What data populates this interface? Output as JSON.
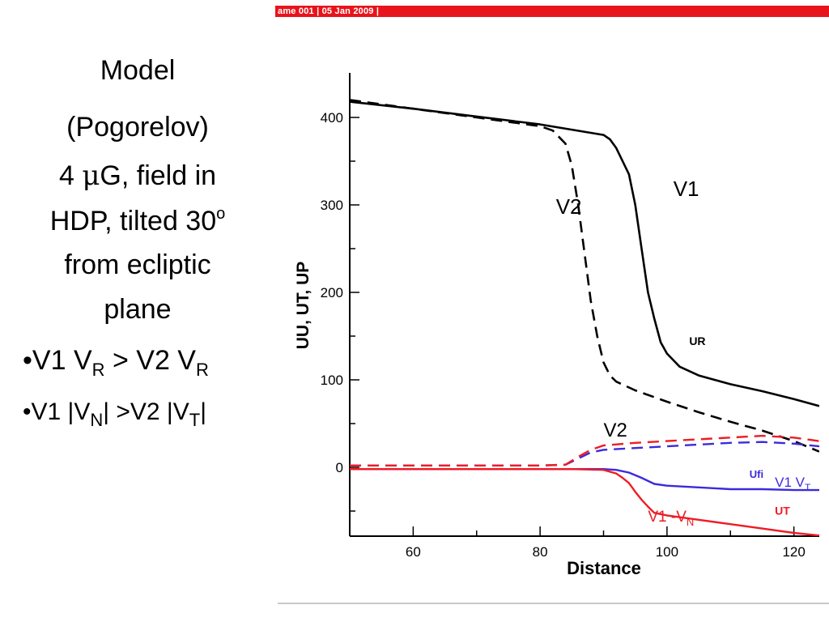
{
  "header": {
    "text": "ame 001  |  05 Jan 2009  |",
    "bar_color": "#e8141b"
  },
  "slide": {
    "title_line1": "Model",
    "title_line2": "(Pogorelov)",
    "field_line1_prefix": "4 ",
    "field_line1_mu": "μ",
    "field_line1_suffix": "G, field in",
    "field_line2": "HDP, tilted 30",
    "field_line2_sup": "o",
    "field_line3": "from ecliptic",
    "field_line4": "plane",
    "bullet1": {
      "bullet": "•",
      "a": "V1 V",
      "a_sub": "R",
      "b": " > V2 V",
      "b_sub": "R"
    },
    "bullet2": {
      "bullet": "•",
      "a": "V1 |V",
      "a_sub": "N",
      "b": "| >V2 |V",
      "b_sub": "T",
      "c": "|"
    }
  },
  "chart_data": {
    "type": "line",
    "xlabel": "Distance",
    "ylabel": "UU, UT, UP",
    "xlim": [
      50,
      124
    ],
    "ylim": [
      -80,
      450
    ],
    "x_ticks": [
      60,
      80,
      100,
      120
    ],
    "y_ticks": [
      0,
      100,
      200,
      300,
      400
    ],
    "colors": {
      "black": "#000000",
      "red": "#ee1c25",
      "blue": "#3b2bdc"
    },
    "series": [
      {
        "id": "v1-ur",
        "color": "black",
        "dash": false,
        "points": [
          [
            50,
            418
          ],
          [
            60,
            410
          ],
          [
            70,
            401
          ],
          [
            80,
            392
          ],
          [
            90,
            380
          ],
          [
            91,
            375
          ],
          [
            92,
            365
          ],
          [
            94,
            335
          ],
          [
            95,
            300
          ],
          [
            96,
            250
          ],
          [
            97,
            200
          ],
          [
            98,
            170
          ],
          [
            99,
            143
          ],
          [
            100,
            130
          ],
          [
            102,
            115
          ],
          [
            105,
            105
          ],
          [
            110,
            95
          ],
          [
            115,
            87
          ],
          [
            120,
            78
          ],
          [
            124,
            70
          ]
        ]
      },
      {
        "id": "v2-ur",
        "color": "black",
        "dash": true,
        "points": [
          [
            50,
            420
          ],
          [
            60,
            410
          ],
          [
            70,
            400
          ],
          [
            80,
            390
          ],
          [
            82,
            385
          ],
          [
            84,
            370
          ],
          [
            85,
            345
          ],
          [
            86,
            300
          ],
          [
            87,
            245
          ],
          [
            88,
            190
          ],
          [
            89,
            150
          ],
          [
            90,
            120
          ],
          [
            91,
            105
          ],
          [
            92,
            98
          ],
          [
            95,
            88
          ],
          [
            100,
            75
          ],
          [
            105,
            63
          ],
          [
            110,
            52
          ],
          [
            115,
            42
          ],
          [
            120,
            30
          ],
          [
            124,
            18
          ]
        ]
      },
      {
        "id": "v1-ufi",
        "color": "blue",
        "dash": false,
        "points": [
          [
            50,
            -2
          ],
          [
            60,
            -2
          ],
          [
            70,
            -2
          ],
          [
            80,
            -2
          ],
          [
            85,
            -2
          ],
          [
            90,
            -2
          ],
          [
            92,
            -3
          ],
          [
            94,
            -6
          ],
          [
            96,
            -12
          ],
          [
            98,
            -19
          ],
          [
            100,
            -21
          ],
          [
            105,
            -23
          ],
          [
            110,
            -25
          ],
          [
            115,
            -25
          ],
          [
            120,
            -26
          ],
          [
            124,
            -26
          ]
        ]
      },
      {
        "id": "v1-ut",
        "color": "red",
        "dash": false,
        "points": [
          [
            50,
            -2
          ],
          [
            60,
            -2
          ],
          [
            70,
            -2
          ],
          [
            80,
            -2
          ],
          [
            85,
            -2
          ],
          [
            90,
            -3
          ],
          [
            92,
            -7
          ],
          [
            93,
            -12
          ],
          [
            94,
            -18
          ],
          [
            95,
            -28
          ],
          [
            96,
            -37
          ],
          [
            97,
            -45
          ],
          [
            98,
            -52
          ],
          [
            100,
            -55
          ],
          [
            105,
            -60
          ],
          [
            110,
            -65
          ],
          [
            115,
            -70
          ],
          [
            120,
            -75
          ],
          [
            124,
            -78
          ]
        ]
      },
      {
        "id": "v2-blue",
        "color": "blue",
        "dash": true,
        "points": [
          [
            50,
            2
          ],
          [
            60,
            2
          ],
          [
            70,
            2
          ],
          [
            80,
            2
          ],
          [
            84,
            3
          ],
          [
            86,
            10
          ],
          [
            88,
            17
          ],
          [
            90,
            20
          ],
          [
            95,
            22
          ],
          [
            100,
            24
          ],
          [
            105,
            26
          ],
          [
            110,
            28
          ],
          [
            115,
            29
          ],
          [
            120,
            27
          ],
          [
            124,
            24
          ]
        ]
      },
      {
        "id": "v2-red",
        "color": "red",
        "dash": true,
        "points": [
          [
            50,
            2
          ],
          [
            60,
            2
          ],
          [
            70,
            2
          ],
          [
            80,
            2
          ],
          [
            84,
            3
          ],
          [
            86,
            12
          ],
          [
            88,
            20
          ],
          [
            90,
            25
          ],
          [
            95,
            28
          ],
          [
            100,
            30
          ],
          [
            105,
            32
          ],
          [
            110,
            34
          ],
          [
            115,
            36
          ],
          [
            120,
            34
          ],
          [
            124,
            30
          ]
        ]
      }
    ],
    "annotations": [
      {
        "text": "V1",
        "x": 101,
        "y": 310,
        "color": "black",
        "size": 26
      },
      {
        "text": "V2",
        "x": 82.5,
        "y": 290,
        "color": "black",
        "size": 26
      },
      {
        "text": "UR",
        "x": 103.5,
        "y": 140,
        "color": "black",
        "size": 14,
        "bold": true
      },
      {
        "text": "V2",
        "x": 90,
        "y": 35,
        "color": "black",
        "size": 24
      },
      {
        "text": "Ufi",
        "x": 113,
        "y": -12,
        "color": "blue",
        "size": 13,
        "bold": true
      },
      {
        "text": "V1 V",
        "sub": "T",
        "x": 117,
        "y": -22,
        "color": "blue",
        "size": 17
      },
      {
        "text": "V1 -V",
        "sub": "N",
        "x": 97,
        "y": -62,
        "color": "red",
        "size": 19
      },
      {
        "text": "UT",
        "x": 117,
        "y": -54,
        "color": "red",
        "size": 14,
        "bold": true
      }
    ]
  }
}
